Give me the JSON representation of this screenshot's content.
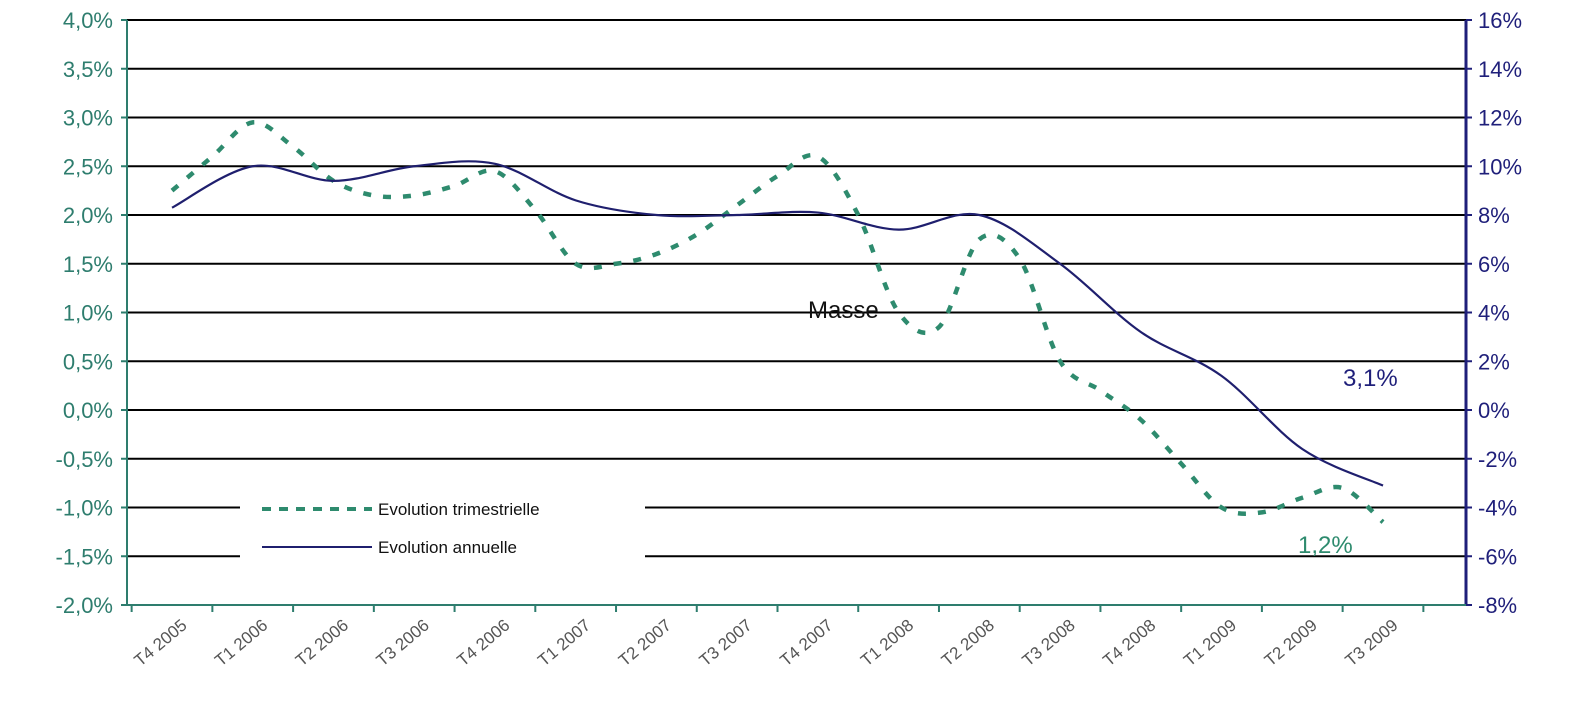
{
  "chart_data": {
    "type": "line",
    "title": "",
    "categories": [
      "T4 2005",
      "T1 2006",
      "T2 2006",
      "T3 2006",
      "T4 2006",
      "T1 2007",
      "T2 2007",
      "T3 2007",
      "T4 2007",
      "T1 2008",
      "T2 2008",
      "T3 2008",
      "T4 2008",
      "T1 2009",
      "T2 2009",
      "T3 2009"
    ],
    "y_left": {
      "ticks": [
        "4,0%",
        "3,5%",
        "3,0%",
        "2,5%",
        "2,0%",
        "1,5%",
        "1,0%",
        "0,5%",
        "0,0%",
        "-0,5%",
        "-1,0%",
        "-1,5%",
        "-2,0%"
      ],
      "range": [
        -2.0,
        4.0
      ]
    },
    "y_right": {
      "ticks": [
        "16%",
        "14%",
        "12%",
        "10%",
        "8%",
        "6%",
        "4%",
        "2%",
        "0%",
        "-2%",
        "-4%",
        "-6%",
        "-8%"
      ],
      "range": [
        -8,
        16
      ]
    },
    "grid": true,
    "legend_position": "bottom-left",
    "series": [
      {
        "name": "Evolution trimestrielle",
        "axis": "left",
        "style": "dashed",
        "color": "#2e8b6e",
        "x": [
          0,
          0.5,
          1,
          1.5,
          2,
          2.5,
          3,
          3.5,
          4,
          4.5,
          5,
          5.5,
          6,
          6.5,
          7,
          7.5,
          8,
          8.5,
          9,
          9.5,
          10,
          10.5,
          11,
          11.5,
          12,
          12.5,
          13,
          13.5,
          14,
          14.5,
          15
        ],
        "values": [
          2.25,
          2.6,
          2.95,
          2.7,
          2.35,
          2.2,
          2.2,
          2.3,
          2.45,
          2.05,
          1.5,
          1.5,
          1.6,
          1.8,
          2.1,
          2.4,
          2.6,
          2.0,
          1.0,
          0.85,
          1.75,
          1.55,
          0.5,
          0.2,
          -0.1,
          -0.55,
          -1.0,
          -1.05,
          -0.9,
          -0.8,
          -1.15
        ]
      },
      {
        "name": "Evolution annuelle",
        "axis": "right",
        "style": "solid",
        "color": "#1f1f6e",
        "x": [
          0,
          1,
          2,
          3,
          4,
          5,
          6,
          7,
          8,
          9,
          10,
          11,
          12,
          13,
          14,
          15
        ],
        "values": [
          8.3,
          10.0,
          9.4,
          10.0,
          10.1,
          8.6,
          8.0,
          8.0,
          8.1,
          7.4,
          8.0,
          6.0,
          3.2,
          1.4,
          -1.6,
          -3.1
        ]
      }
    ],
    "annotations": {
      "center_label": "Masse",
      "annual_end": "3,1%",
      "quarterly_end": "1,2%"
    }
  },
  "colors": {
    "left_axis": "#2e7d6e",
    "right_axis": "#1f1f7a",
    "grid": "#000000"
  }
}
